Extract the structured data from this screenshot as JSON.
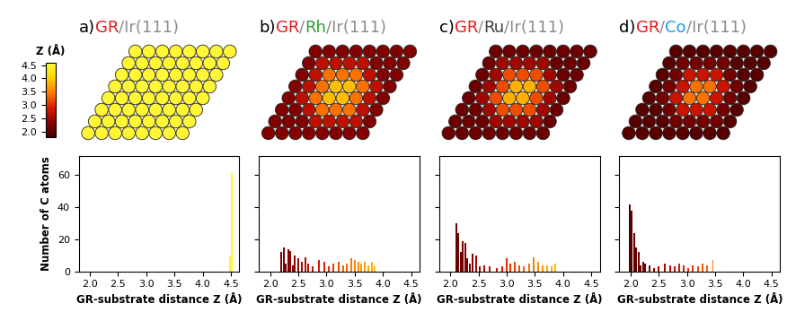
{
  "colorbar": {
    "label": "Z (Å)",
    "range": [
      1.8,
      4.6
    ],
    "ticks": [
      2.0,
      2.5,
      3.0,
      3.5,
      4.0,
      4.5
    ]
  },
  "chart_data": [
    {
      "type": "bar",
      "title_parts": [
        {
          "text": "a)",
          "color": "#000000"
        },
        {
          "text": "GR",
          "color": "#e41a1c"
        },
        {
          "text": "/Ir(111)",
          "color": "#8c8c8c"
        }
      ],
      "x": [
        4.49,
        4.52
      ],
      "values": [
        10,
        62
      ],
      "z_grid": [
        [
          4.5,
          4.5,
          4.5,
          4.5,
          4.5,
          4.5,
          4.5,
          4.5
        ],
        [
          4.5,
          4.5,
          4.5,
          4.5,
          4.5,
          4.5,
          4.5,
          4.5
        ],
        [
          4.5,
          4.5,
          4.5,
          4.5,
          4.5,
          4.5,
          4.5,
          4.5
        ],
        [
          4.5,
          4.5,
          4.5,
          4.5,
          4.5,
          4.5,
          4.5,
          4.5
        ],
        [
          4.5,
          4.5,
          4.5,
          4.5,
          4.5,
          4.5,
          4.5,
          4.5
        ],
        [
          4.5,
          4.5,
          4.5,
          4.5,
          4.5,
          4.5,
          4.5,
          4.5
        ],
        [
          4.5,
          4.5,
          4.5,
          4.5,
          4.5,
          4.5,
          4.5,
          4.5
        ],
        [
          4.5,
          4.5,
          4.5,
          4.5,
          4.5,
          4.5,
          4.5,
          4.5
        ]
      ],
      "xlabel": "GR-substrate distance Z (Å)",
      "ylabel": "Number of C atoms",
      "xlim": [
        1.8,
        4.65
      ],
      "ylim": [
        0,
        72
      ],
      "xticks": [
        2.0,
        2.5,
        3.0,
        3.5,
        4.0,
        4.5
      ],
      "yticks": [
        0,
        20,
        40,
        60
      ]
    },
    {
      "type": "bar",
      "title_parts": [
        {
          "text": "b)",
          "color": "#000000"
        },
        {
          "text": "GR",
          "color": "#e41a1c"
        },
        {
          "text": "/",
          "color": "#8c8c8c"
        },
        {
          "text": "Rh",
          "color": "#2ca02c"
        },
        {
          "text": "/Ir(111)",
          "color": "#8c8c8c"
        }
      ],
      "x": [
        2.2,
        2.24,
        2.28,
        2.32,
        2.36,
        2.4,
        2.44,
        2.5,
        2.56,
        2.62,
        2.68,
        2.76,
        2.86,
        2.96,
        3.04,
        3.12,
        3.22,
        3.3,
        3.36,
        3.44,
        3.5,
        3.56,
        3.62,
        3.68,
        3.74,
        3.8,
        3.86
      ],
      "values": [
        12,
        15,
        5,
        14,
        13,
        4,
        10,
        8,
        6,
        9,
        5,
        3,
        7,
        6,
        3,
        5,
        6,
        4,
        5,
        8,
        7,
        6,
        5,
        6,
        4,
        6,
        3
      ],
      "z_grid": [
        [
          2.3,
          2.3,
          2.3,
          2.3,
          2.3,
          2.3,
          2.3,
          2.3
        ],
        [
          2.3,
          2.3,
          2.3,
          2.7,
          2.7,
          2.7,
          2.7,
          2.3
        ],
        [
          2.3,
          2.3,
          2.7,
          3.4,
          3.4,
          3.4,
          2.7,
          2.3
        ],
        [
          2.3,
          2.7,
          3.4,
          3.9,
          3.9,
          3.4,
          2.7,
          2.3
        ],
        [
          2.3,
          2.7,
          3.4,
          3.9,
          3.9,
          3.4,
          2.7,
          2.3
        ],
        [
          2.3,
          2.7,
          3.4,
          3.4,
          3.4,
          2.7,
          2.3,
          2.3
        ],
        [
          2.3,
          2.7,
          2.7,
          2.7,
          2.7,
          2.3,
          2.3,
          2.3
        ],
        [
          2.3,
          2.3,
          2.3,
          2.3,
          2.3,
          2.3,
          2.3,
          2.3
        ]
      ],
      "xlabel": "GR-substrate distance Z (Å)",
      "xlim": [
        1.8,
        4.65
      ],
      "ylim": [
        0,
        72
      ],
      "xticks": [
        2.0,
        2.5,
        3.0,
        3.5,
        4.0,
        4.5
      ],
      "yticks": [
        0,
        20,
        40,
        60
      ],
      "tick_labels": "x"
    },
    {
      "type": "bar",
      "title_parts": [
        {
          "text": "c)",
          "color": "#000000"
        },
        {
          "text": "GR",
          "color": "#e41a1c"
        },
        {
          "text": "/",
          "color": "#8c8c8c"
        },
        {
          "text": "Ru",
          "color": "#404040"
        },
        {
          "text": "/Ir(111)",
          "color": "#8c8c8c"
        }
      ],
      "x": [
        2.1,
        2.14,
        2.18,
        2.22,
        2.26,
        2.3,
        2.34,
        2.4,
        2.46,
        2.52,
        2.6,
        2.7,
        2.82,
        2.92,
        3.0,
        3.06,
        3.14,
        3.22,
        3.3,
        3.4,
        3.48,
        3.56,
        3.64,
        3.72,
        3.8,
        3.86
      ],
      "values": [
        30,
        24,
        12,
        19,
        18,
        8,
        5,
        11,
        10,
        3,
        4,
        3,
        2,
        3,
        8,
        5,
        6,
        4,
        3,
        5,
        9,
        6,
        4,
        4,
        3,
        5
      ],
      "z_grid": [
        [
          2.15,
          2.15,
          2.15,
          2.15,
          2.15,
          2.15,
          2.15,
          2.15
        ],
        [
          2.15,
          2.15,
          2.15,
          2.5,
          2.5,
          2.5,
          2.5,
          2.15
        ],
        [
          2.15,
          2.15,
          2.5,
          3.2,
          3.2,
          3.2,
          2.5,
          2.15
        ],
        [
          2.15,
          2.5,
          3.2,
          3.8,
          3.8,
          3.2,
          2.5,
          2.15
        ],
        [
          2.15,
          2.5,
          3.2,
          3.8,
          3.8,
          3.2,
          2.5,
          2.15
        ],
        [
          2.15,
          2.5,
          3.2,
          3.2,
          3.2,
          2.5,
          2.15,
          2.15
        ],
        [
          2.15,
          2.5,
          2.5,
          2.5,
          2.5,
          2.15,
          2.15,
          2.15
        ],
        [
          2.15,
          2.15,
          2.15,
          2.15,
          2.15,
          2.15,
          2.15,
          2.15
        ]
      ],
      "xlabel": "GR-substrate distance Z (Å)",
      "xlim": [
        1.8,
        4.65
      ],
      "ylim": [
        0,
        72
      ],
      "xticks": [
        2.0,
        2.5,
        3.0,
        3.5,
        4.0,
        4.5
      ],
      "yticks": [
        0,
        20,
        40,
        60
      ],
      "tick_labels": "x"
    },
    {
      "type": "bar",
      "title_parts": [
        {
          "text": "d)",
          "color": "#000000"
        },
        {
          "text": "GR",
          "color": "#e41a1c"
        },
        {
          "text": "/",
          "color": "#8c8c8c"
        },
        {
          "text": "Co",
          "color": "#1e9be6"
        },
        {
          "text": "/Ir(111)",
          "color": "#8c8c8c"
        }
      ],
      "x": [
        1.98,
        2.02,
        2.06,
        2.1,
        2.14,
        2.18,
        2.22,
        2.26,
        2.34,
        2.42,
        2.5,
        2.6,
        2.7,
        2.78,
        2.86,
        2.94,
        3.02,
        3.1,
        3.2,
        3.28,
        3.36,
        3.46
      ],
      "values": [
        42,
        38,
        24,
        15,
        12,
        4,
        6,
        5,
        4,
        2,
        3,
        5,
        4,
        3,
        5,
        4,
        2,
        4,
        3,
        5,
        4,
        7
      ],
      "z_grid": [
        [
          2.0,
          2.0,
          2.0,
          2.0,
          2.0,
          2.0,
          2.0,
          2.0
        ],
        [
          2.0,
          2.0,
          2.0,
          2.2,
          2.2,
          2.2,
          2.2,
          2.0
        ],
        [
          2.0,
          2.0,
          2.2,
          2.8,
          2.8,
          2.8,
          2.2,
          2.0
        ],
        [
          2.0,
          2.2,
          2.8,
          3.4,
          3.4,
          2.8,
          2.2,
          2.0
        ],
        [
          2.0,
          2.2,
          2.8,
          3.4,
          3.4,
          2.8,
          2.2,
          2.0
        ],
        [
          2.0,
          2.2,
          2.8,
          2.8,
          2.8,
          2.2,
          2.0,
          2.0
        ],
        [
          2.0,
          2.2,
          2.2,
          2.2,
          2.2,
          2.0,
          2.0,
          2.0
        ],
        [
          2.0,
          2.0,
          2.0,
          2.0,
          2.0,
          2.0,
          2.0,
          2.0
        ]
      ],
      "xlabel": "GR-substrate distance Z (Å)",
      "xlim": [
        1.8,
        4.65
      ],
      "ylim": [
        0,
        72
      ],
      "xticks": [
        2.0,
        2.5,
        3.0,
        3.5,
        4.0,
        4.5
      ],
      "yticks": [
        0,
        20,
        40,
        60
      ],
      "tick_labels": "x"
    }
  ]
}
